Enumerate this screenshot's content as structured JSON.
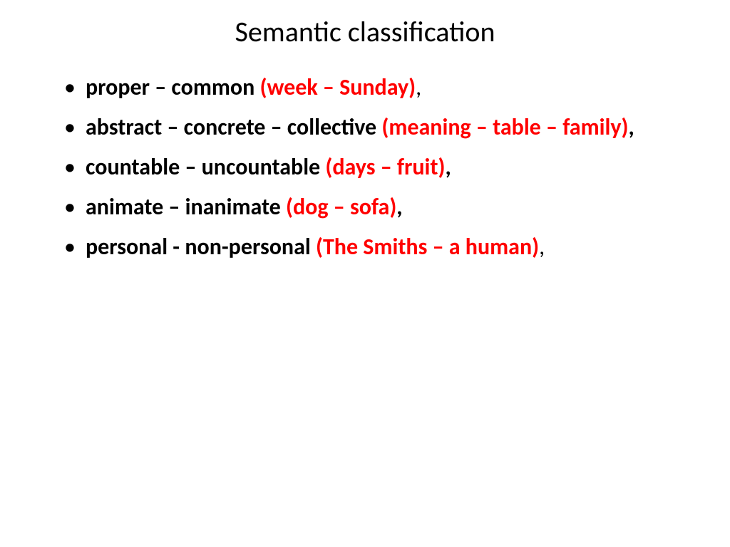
{
  "title": "Semantic classification",
  "items": [
    {
      "black": "proper – common ",
      "red": "(week – Sunday)",
      "trail": ","
    },
    {
      "black": "abstract – concrete – collective ",
      "red": "(meaning – table – family)",
      "trail": ","
    },
    {
      "black": " countable – uncountable ",
      "red": "(days – fruit)",
      "trail": ","
    },
    {
      "black": "animate – inanimate ",
      "red": "(dog – sofa)",
      "trail": ","
    },
    {
      "black": " personal - non-personal ",
      "red": "(The Smiths – a human)",
      "trail": ","
    }
  ],
  "colors": {
    "title": "#000000",
    "black_text": "#000000",
    "red_text": "#ff0000",
    "background": "#ffffff"
  },
  "typography": {
    "title_fontsize": 40,
    "body_fontsize": 32,
    "body_weight": "bold",
    "font_family": "Calibri"
  }
}
